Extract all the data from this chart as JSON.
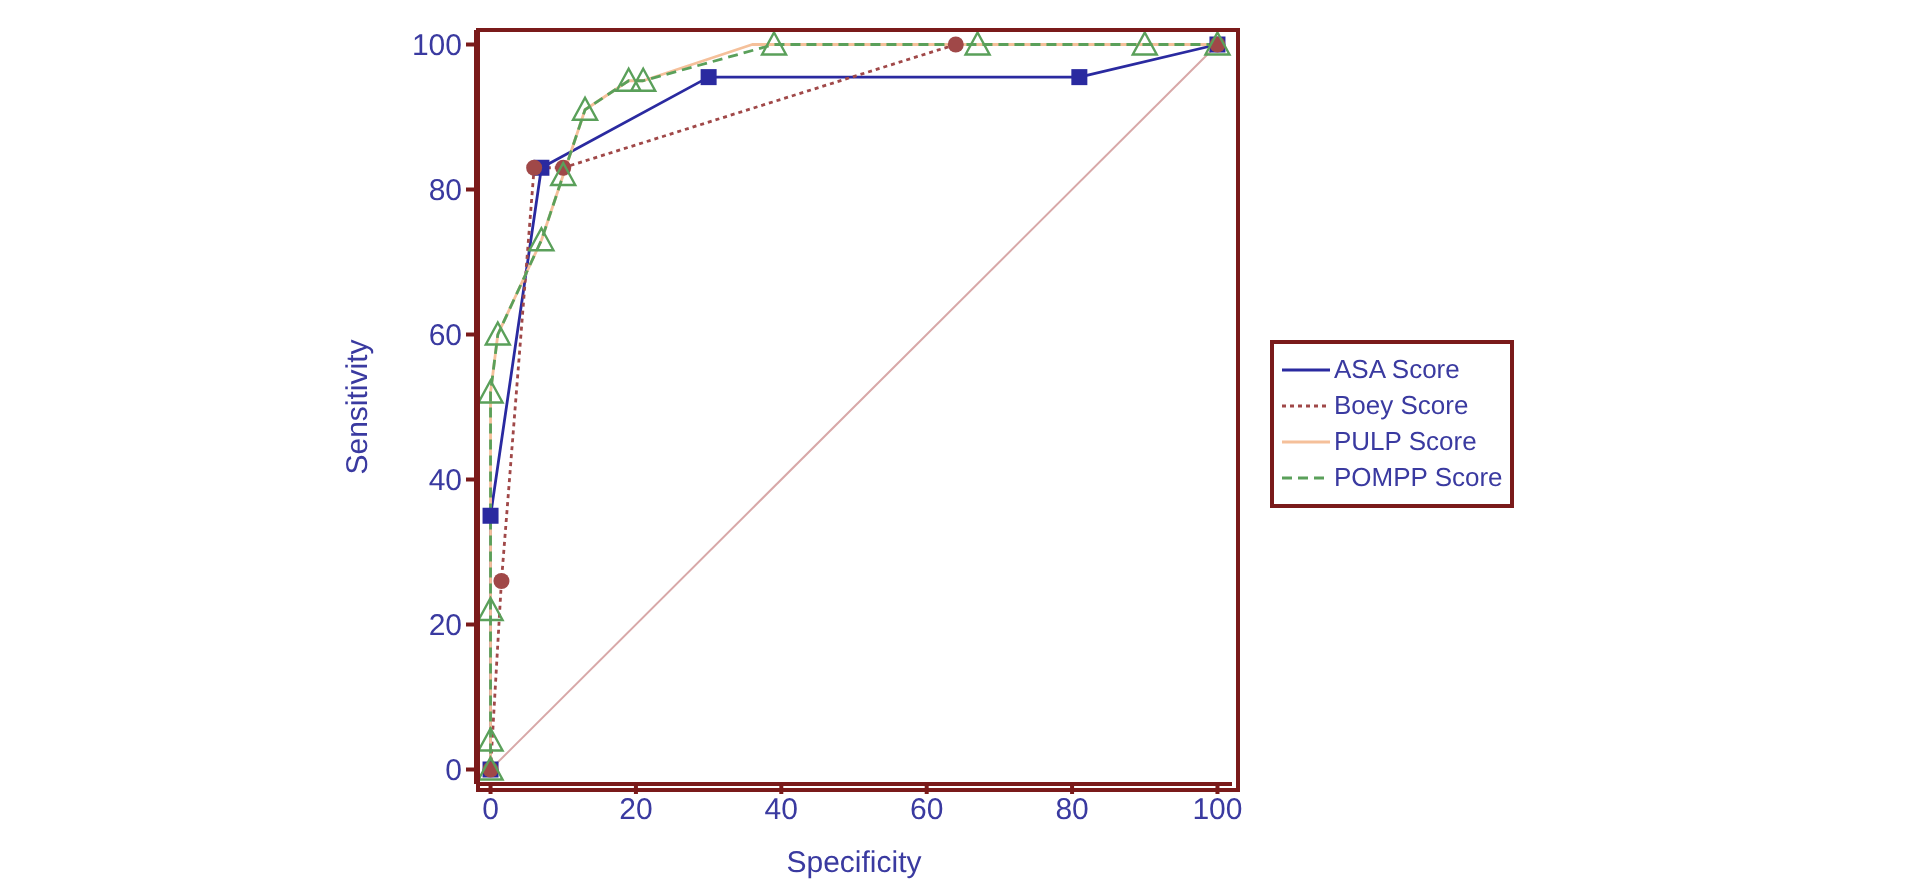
{
  "chart_data": {
    "type": "line",
    "xlabel": "Specificity",
    "ylabel": "Sensitivity",
    "xlim": [
      -2,
      102
    ],
    "ylim": [
      -2,
      102
    ],
    "xticks": [
      0,
      20,
      40,
      60,
      80,
      100
    ],
    "yticks": [
      0,
      20,
      40,
      60,
      80,
      100
    ],
    "legend": "right",
    "series": [
      {
        "name": "ASA Score",
        "color": "#2a2aa0",
        "marker": "square",
        "line_style": "solid",
        "x": [
          0,
          0,
          7,
          30,
          81,
          100
        ],
        "values": [
          0,
          35,
          83,
          95.5,
          95.5,
          100
        ]
      },
      {
        "name": "Boey Score",
        "color": "#a04848",
        "marker": "circle",
        "line_style": "dotted",
        "x": [
          0,
          1.5,
          6,
          10,
          64,
          100
        ],
        "values": [
          0,
          26,
          83,
          83,
          100,
          100
        ]
      },
      {
        "name": "PULP Score",
        "color": "#f5c09a",
        "marker": "none",
        "line_style": "solid",
        "x": [
          0,
          0,
          1,
          7,
          13,
          19,
          21,
          36,
          100
        ],
        "values": [
          0,
          52,
          60,
          73,
          91,
          95,
          95,
          100,
          100
        ]
      },
      {
        "name": "POMPP Score",
        "color": "#5aa05a",
        "marker": "triangle",
        "line_style": "dashed",
        "x": [
          0,
          0,
          0,
          0,
          1,
          7,
          10,
          13,
          19,
          21,
          39,
          67,
          90,
          100
        ],
        "values": [
          0,
          4,
          22,
          52,
          60,
          73,
          82,
          91,
          95,
          95,
          100,
          100,
          100,
          100
        ]
      },
      {
        "color": "#d8a8a8",
        "marker": "none",
        "line_style": "solid",
        "x": [
          0,
          100
        ],
        "values": [
          0,
          100
        ]
      }
    ]
  }
}
